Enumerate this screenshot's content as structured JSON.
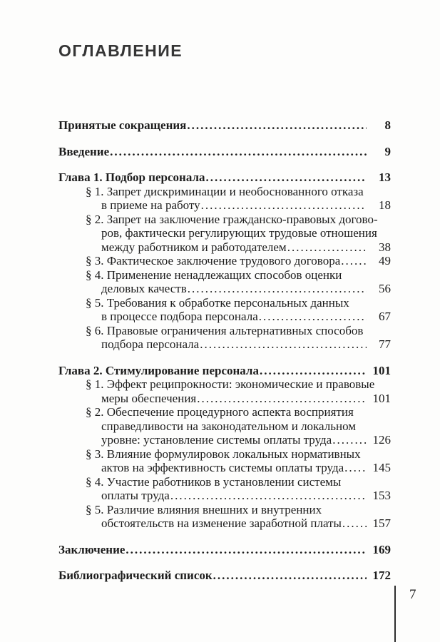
{
  "page": {
    "title": "ОГЛАВЛЕНИЕ",
    "folio": "7",
    "toc": [
      {
        "bold": true,
        "indented": false,
        "gap": false,
        "lines": [
          "Принятые сокращения"
        ],
        "page": "8"
      },
      {
        "bold": true,
        "indented": false,
        "gap": true,
        "lines": [
          "Введение"
        ],
        "page": "9"
      },
      {
        "bold": true,
        "indented": false,
        "gap": true,
        "lines": [
          "Глава 1. Подбор персонала"
        ],
        "page": "13"
      },
      {
        "bold": false,
        "indented": true,
        "gap": false,
        "lines": [
          "§ 1. Запрет дискриминации и необоснованного отказа",
          "в приеме на работу"
        ],
        "page": "18"
      },
      {
        "bold": false,
        "indented": true,
        "gap": false,
        "lines": [
          "§ 2. Запрет на заключение гражданско-правовых догово-",
          "ров, фактически регулирующих трудовые отношения",
          "между работником и работодателем"
        ],
        "page": "38"
      },
      {
        "bold": false,
        "indented": true,
        "gap": false,
        "lines": [
          "§ 3. Фактическое заключение трудового договора"
        ],
        "page": "49"
      },
      {
        "bold": false,
        "indented": true,
        "gap": false,
        "lines": [
          "§ 4. Применение ненадлежащих способов оценки",
          "деловых качеств"
        ],
        "page": "56"
      },
      {
        "bold": false,
        "indented": true,
        "gap": false,
        "lines": [
          "§ 5. Требования к обработке персональных данных",
          "в процессе подбора персонала"
        ],
        "page": "67"
      },
      {
        "bold": false,
        "indented": true,
        "gap": false,
        "lines": [
          "§ 6. Правовые ограничения альтернативных способов",
          "подбора персонала"
        ],
        "page": "77"
      },
      {
        "bold": true,
        "indented": false,
        "gap": true,
        "lines": [
          "Глава 2. Стимулирование персонала"
        ],
        "page": "101"
      },
      {
        "bold": false,
        "indented": true,
        "gap": false,
        "lines": [
          "§ 1. Эффект реципрокности: экономические и правовые",
          "меры обеспечения"
        ],
        "page": "101"
      },
      {
        "bold": false,
        "indented": true,
        "gap": false,
        "lines": [
          "§ 2. Обеспечение процедурного аспекта восприятия",
          "справедливости на законодательном и локальном",
          "уровне: установление системы оплаты труда"
        ],
        "page": "126"
      },
      {
        "bold": false,
        "indented": true,
        "gap": false,
        "lines": [
          "§ 3. Влияние формулировок локальных нормативных",
          "актов на эффективность системы оплаты труда"
        ],
        "page": "145"
      },
      {
        "bold": false,
        "indented": true,
        "gap": false,
        "lines": [
          "§ 4. Участие работников в установлении системы",
          "оплаты труда"
        ],
        "page": "153"
      },
      {
        "bold": false,
        "indented": true,
        "gap": false,
        "lines": [
          "§ 5. Различие влияния внешних и внутренних",
          "обстоятельств на изменение заработной платы"
        ],
        "page": "157"
      },
      {
        "bold": true,
        "indented": false,
        "gap": true,
        "lines": [
          "Заключение"
        ],
        "page": "169"
      },
      {
        "bold": true,
        "indented": false,
        "gap": true,
        "lines": [
          "Библиографический список"
        ],
        "page": "172"
      }
    ]
  }
}
